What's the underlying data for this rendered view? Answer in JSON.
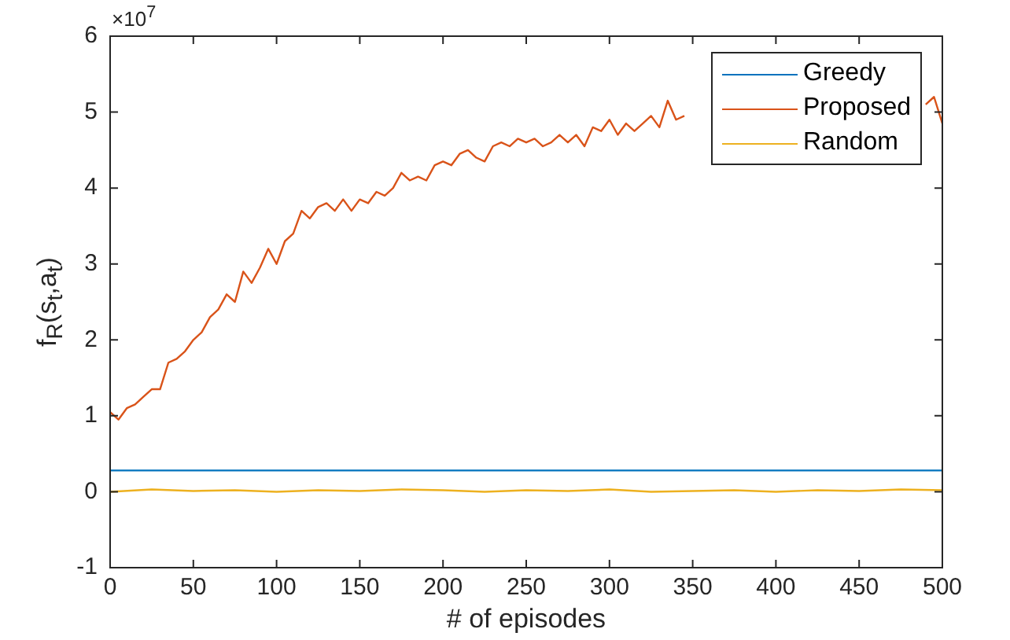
{
  "chart_data": {
    "type": "line",
    "xlabel": "# of episodes",
    "ylabel": "f$_{R}$(s$_{t}$,a$_{t}$)",
    "annotations": [
      "×10$^{7}$"
    ],
    "xlim": [
      0,
      500
    ],
    "xticks": [
      0,
      50,
      100,
      150,
      200,
      250,
      300,
      350,
      400,
      450,
      500
    ],
    "ylim": [
      -1,
      6
    ],
    "yticks": [
      -1,
      0,
      1,
      2,
      3,
      4,
      5,
      6
    ],
    "grid": false,
    "legend": "top right",
    "marker": "none",
    "line_style": "solid",
    "series": [
      {
        "name": "Greedy",
        "color": "#0072bd",
        "x": [
          0,
          500
        ],
        "values": [
          0.28,
          0.28
        ]
      },
      {
        "name": "Proposed",
        "color": "#d95319",
        "x": [
          0,
          5,
          10,
          15,
          20,
          25,
          30,
          35,
          40,
          45,
          50,
          55,
          60,
          65,
          70,
          75,
          80,
          85,
          90,
          95,
          100,
          105,
          110,
          115,
          120,
          125,
          130,
          135,
          140,
          145,
          150,
          155,
          160,
          165,
          170,
          175,
          180,
          185,
          190,
          195,
          200,
          205,
          210,
          215,
          220,
          225,
          230,
          235,
          240,
          245,
          250,
          255,
          260,
          265,
          270,
          275,
          280,
          285,
          290,
          295,
          300,
          305,
          310,
          315,
          320,
          325,
          330,
          335,
          340,
          345,
          350,
          490,
          495,
          500
        ],
        "values": [
          1.05,
          0.95,
          1.1,
          1.15,
          1.25,
          1.35,
          1.35,
          1.7,
          1.75,
          1.85,
          2.0,
          2.1,
          2.3,
          2.4,
          2.6,
          2.5,
          2.9,
          2.75,
          2.95,
          3.2,
          3.0,
          3.3,
          3.4,
          3.7,
          3.6,
          3.75,
          3.8,
          3.7,
          3.85,
          3.7,
          3.85,
          3.8,
          3.95,
          3.9,
          4.0,
          4.2,
          4.1,
          4.15,
          4.1,
          4.3,
          4.35,
          4.3,
          4.45,
          4.5,
          4.4,
          4.35,
          4.55,
          4.6,
          4.55,
          4.65,
          4.6,
          4.65,
          4.55,
          4.6,
          4.7,
          4.6,
          4.7,
          4.55,
          4.8,
          4.75,
          4.9,
          4.7,
          4.85,
          4.75,
          4.85,
          4.95,
          4.8,
          5.15,
          4.9,
          4.95,
          null,
          5.1,
          5.2,
          4.85
        ]
      },
      {
        "name": "Random",
        "color": "#edb120",
        "x": [
          0,
          25,
          50,
          75,
          100,
          125,
          150,
          175,
          200,
          225,
          250,
          275,
          300,
          325,
          350,
          375,
          400,
          425,
          450,
          475,
          500
        ],
        "values": [
          0.0,
          0.03,
          0.01,
          0.02,
          0.0,
          0.02,
          0.01,
          0.03,
          0.02,
          0.0,
          0.02,
          0.01,
          0.03,
          0.0,
          0.01,
          0.02,
          0.0,
          0.02,
          0.01,
          0.03,
          0.02
        ]
      }
    ]
  }
}
